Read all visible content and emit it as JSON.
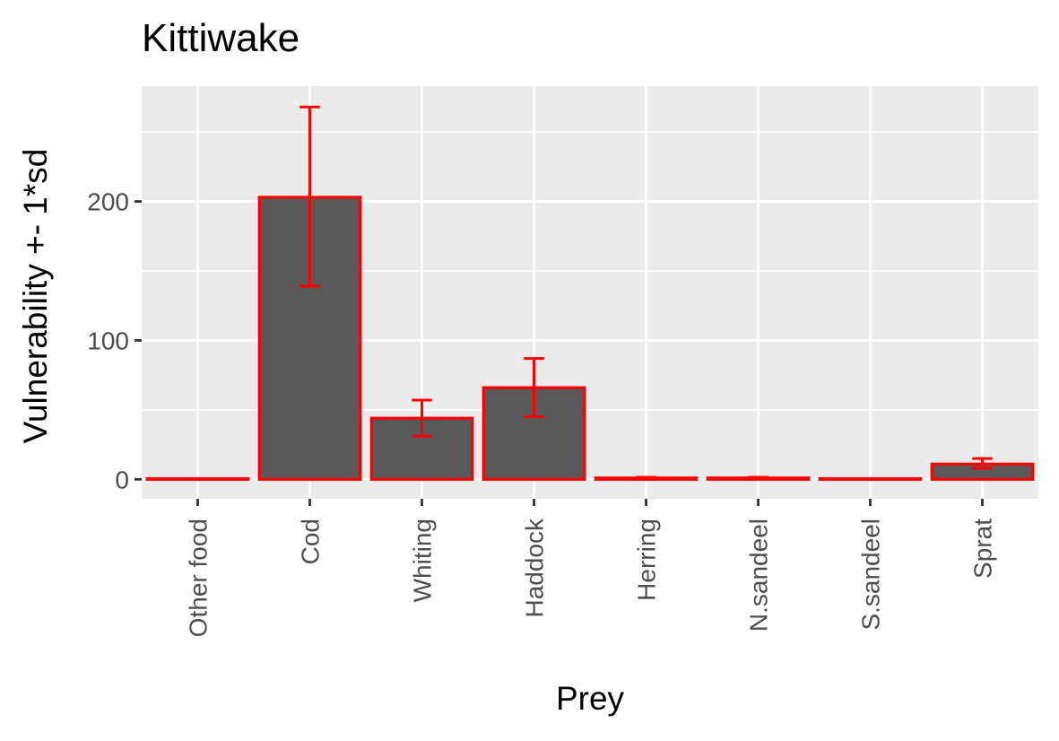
{
  "chart_data": {
    "type": "bar",
    "title": "Kittiwake",
    "xlabel": "Prey",
    "ylabel": "Vulnerability +- 1*sd",
    "categories": [
      "Other food",
      "Cod",
      "Whiting",
      "Haddock",
      "Herring",
      "N.sandeel",
      "S.sandeel",
      "Sprat"
    ],
    "values": [
      0.5,
      203,
      44,
      66,
      1,
      1,
      0.5,
      11
    ],
    "error_low": [
      0.5,
      139,
      31,
      45,
      1,
      1,
      0.5,
      8
    ],
    "error_high": [
      0.5,
      268,
      57,
      87,
      1.5,
      1.5,
      0.5,
      15
    ],
    "ylim": [
      -14,
      283
    ],
    "yticks": [
      0,
      100,
      200
    ],
    "grid": true,
    "colors": {
      "panel_background": "#ebebeb",
      "grid": "#ffffff",
      "bar_fill": "#595959",
      "bar_outline": "#ff0000",
      "errorbar": "#ff0000"
    }
  }
}
